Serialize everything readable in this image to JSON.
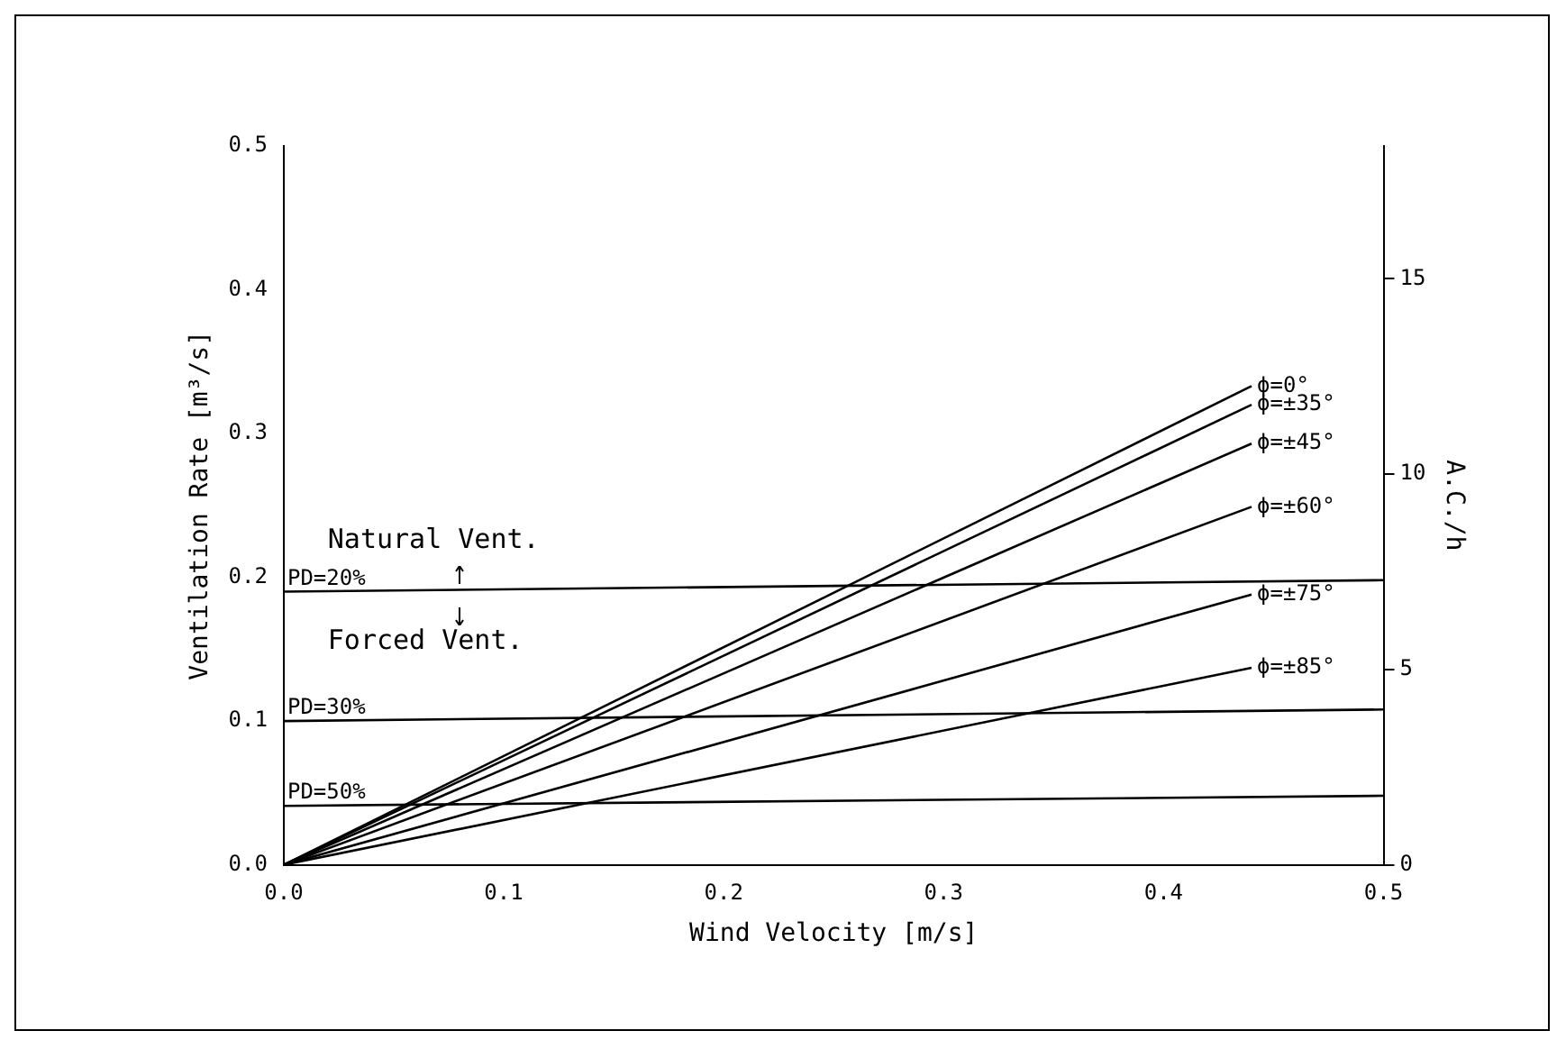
{
  "chart_data": {
    "type": "line",
    "xlabel": "Wind Velocity [m/s]",
    "ylabel": "Ventilation Rate [m³/s]",
    "y2label": "A.C./h",
    "xlim": [
      0,
      0.5
    ],
    "xticks": [
      {
        "value": 0,
        "label": "0.0"
      },
      {
        "value": 0.1,
        "label": "0.1"
      },
      {
        "value": 0.2,
        "label": "0.2"
      },
      {
        "value": 0.3,
        "label": "0.3"
      },
      {
        "value": 0.4,
        "label": "0.4"
      },
      {
        "value": 0.5,
        "label": "0.5"
      }
    ],
    "ylim": [
      0,
      0.5
    ],
    "yticks": [
      {
        "value": 0,
        "label": "0.0"
      },
      {
        "value": 0.1,
        "label": "0.1"
      },
      {
        "value": 0.2,
        "label": "0.2"
      },
      {
        "value": 0.3,
        "label": "0.3"
      },
      {
        "value": 0.4,
        "label": "0.4"
      },
      {
        "value": 0.5,
        "label": "0.5"
      }
    ],
    "y2lim": [
      0,
      18.4
    ],
    "y2ticks": [
      0,
      5,
      10,
      15
    ],
    "series": [
      {
        "name": "ϕ=0°",
        "color": "#000000",
        "x": [
          0,
          0.44
        ],
        "values": [
          0,
          0.333
        ]
      },
      {
        "name": "ϕ=±35°",
        "color": "#000000",
        "x": [
          0,
          0.44
        ],
        "values": [
          0,
          0.32
        ]
      },
      {
        "name": "ϕ=±45°",
        "color": "#000000",
        "x": [
          0,
          0.44
        ],
        "values": [
          0,
          0.293
        ]
      },
      {
        "name": "ϕ=±60°",
        "color": "#000000",
        "x": [
          0,
          0.44
        ],
        "values": [
          0,
          0.249
        ]
      },
      {
        "name": "ϕ=±75°",
        "color": "#000000",
        "x": [
          0,
          0.44
        ],
        "values": [
          0,
          0.188
        ]
      },
      {
        "name": "ϕ=±85°",
        "color": "#000000",
        "x": [
          0,
          0.44
        ],
        "values": [
          0,
          0.137
        ]
      },
      {
        "name": "PD=20%",
        "color": "#000000",
        "x": [
          0,
          0.5
        ],
        "values": [
          0.19,
          0.198
        ]
      },
      {
        "name": "PD=30%",
        "color": "#000000",
        "x": [
          0,
          0.5
        ],
        "values": [
          0.1,
          0.108
        ]
      },
      {
        "name": "PD=50%",
        "color": "#000000",
        "x": [
          0,
          0.5
        ],
        "values": [
          0.041,
          0.048
        ]
      }
    ],
    "annotations": [
      "Natural Vent.",
      "Forced Vent."
    ],
    "grid": false,
    "legend": false,
    "marker": "none",
    "line_style": "solid"
  }
}
